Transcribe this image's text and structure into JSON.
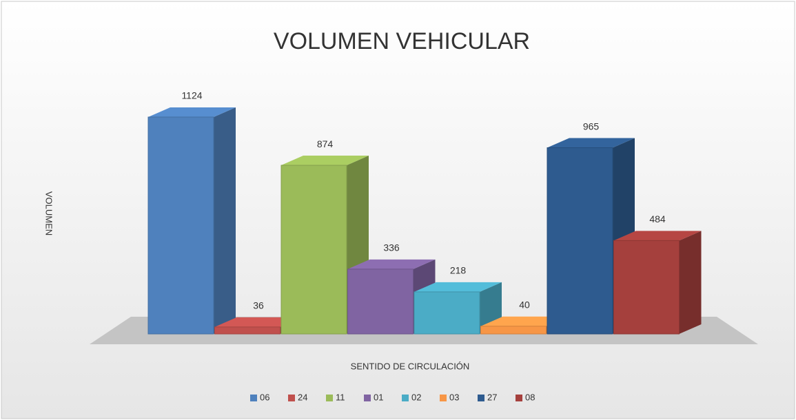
{
  "chart_data": {
    "type": "bar3d",
    "title": "VOLUMEN VEHICULAR",
    "y_label": "VOLUMEN",
    "x_label": "SENTIDO DE CIRCULACIÓN",
    "categories": [
      "06",
      "24",
      "11",
      "01",
      "02",
      "03",
      "27",
      "08"
    ],
    "values": [
      1124,
      36,
      874,
      336,
      218,
      40,
      965,
      484
    ],
    "colors": [
      "#4f81bd",
      "#c0504d",
      "#9bbb59",
      "#8064a2",
      "#4bacc6",
      "#f79646",
      "#2e5b8f",
      "#a5403d"
    ],
    "legend": "bottom"
  }
}
